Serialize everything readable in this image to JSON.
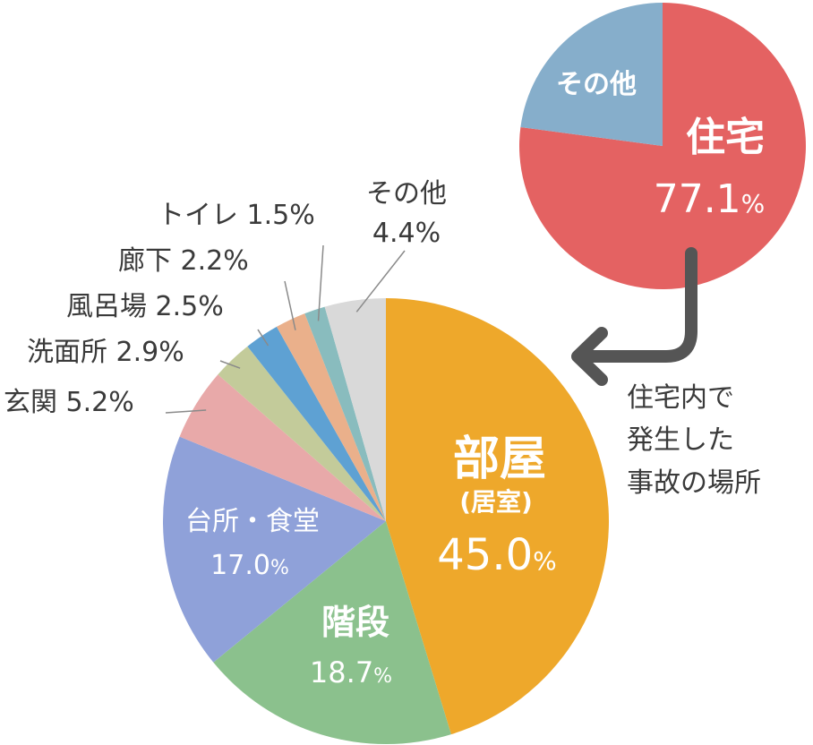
{
  "chart_data": [
    {
      "type": "pie",
      "slices": [
        {
          "label": "住宅",
          "value": 77.1,
          "color": "#e46262"
        },
        {
          "label": "その他",
          "value": 22.9,
          "color": "#86aecb"
        }
      ],
      "value_labels": {
        "住宅": "77.1",
        "percent_sign": "%"
      }
    },
    {
      "type": "pie",
      "slices": [
        {
          "label": "部屋",
          "sublabel": "(居室)",
          "value": 45.0,
          "value_text": "45.0",
          "color": "#eea82b"
        },
        {
          "label": "階段",
          "value": 18.7,
          "value_text": "18.7",
          "color": "#8bc18d"
        },
        {
          "label": "台所・食堂",
          "value": 17.0,
          "value_text": "17.0",
          "color": "#8fa1d9"
        },
        {
          "label": "玄関",
          "value": 5.2,
          "value_text": "玄関 5.2%",
          "color": "#e8a9a9"
        },
        {
          "label": "洗面所",
          "value": 2.9,
          "value_text": "洗面所 2.9%",
          "color": "#c3cb9a"
        },
        {
          "label": "風呂場",
          "value": 2.5,
          "value_text": "風呂場 2.5%",
          "color": "#5ea1d3"
        },
        {
          "label": "廊下",
          "value": 2.2,
          "value_text": "廊下 2.2%",
          "color": "#eab08b"
        },
        {
          "label": "トイレ",
          "value": 1.5,
          "value_text": "トイレ 1.5%",
          "color": "#89bcbe"
        },
        {
          "label": "その他",
          "value": 4.4,
          "value_text": "4.4%",
          "color": "#d9d9d9"
        }
      ]
    }
  ],
  "annotation": {
    "lines": [
      "住宅内で",
      "発生した",
      "事故の場所"
    ],
    "arrow_color": "#555555"
  }
}
